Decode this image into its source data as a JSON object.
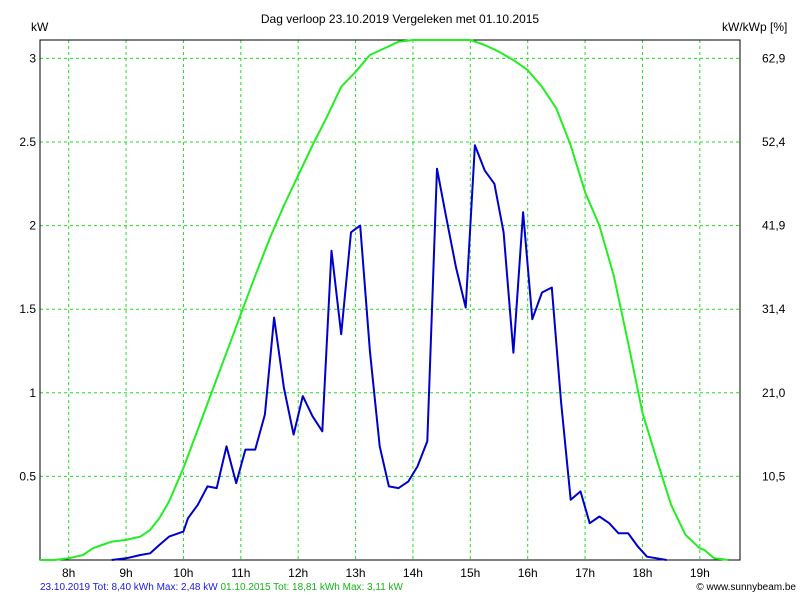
{
  "chart_data": {
    "type": "line",
    "title": "Dag  verloop 23.10.2019   Vergeleken met 01.10.2015",
    "ylabel_left": "kW",
    "ylabel_right": "kW/kWp [%]",
    "xlim": [
      7.5,
      19.7
    ],
    "ylim": [
      0,
      3.11
    ],
    "x_tick_values": [
      8,
      9,
      10,
      11,
      12,
      13,
      14,
      15,
      16,
      17,
      18,
      19
    ],
    "x_tick_labels": [
      "8h",
      "9h",
      "10h",
      "11h",
      "12h",
      "13h",
      "14h",
      "15h",
      "16h",
      "17h",
      "18h",
      "19h"
    ],
    "y_tick_values": [
      0.5,
      1,
      1.5,
      2,
      2.5,
      3
    ],
    "y_tick_labels": [
      "0.5",
      "1",
      "1.5",
      "2",
      "2.5",
      "3"
    ],
    "y2_tick_labels": [
      "10,5",
      "21,0",
      "31,4",
      "41,9",
      "52,4",
      "62,9"
    ],
    "grid": true,
    "series": [
      {
        "name": "23.10.2019",
        "color": "#0000cc",
        "x": [
          8.75,
          9.0,
          9.25,
          9.42,
          9.58,
          9.75,
          10.0,
          10.08,
          10.25,
          10.42,
          10.58,
          10.75,
          10.92,
          11.08,
          11.25,
          11.42,
          11.58,
          11.75,
          11.92,
          12.08,
          12.25,
          12.42,
          12.58,
          12.75,
          12.92,
          13.08,
          13.25,
          13.42,
          13.58,
          13.75,
          13.92,
          14.08,
          14.25,
          14.42,
          14.58,
          14.75,
          14.92,
          15.08,
          15.25,
          15.42,
          15.58,
          15.75,
          15.92,
          16.08,
          16.25,
          16.42,
          16.58,
          16.75,
          16.92,
          17.08,
          17.25,
          17.42,
          17.58,
          17.75,
          17.92,
          18.08,
          18.25,
          18.42
        ],
        "y": [
          0.0,
          0.01,
          0.03,
          0.04,
          0.09,
          0.14,
          0.17,
          0.25,
          0.33,
          0.44,
          0.43,
          0.68,
          0.46,
          0.66,
          0.66,
          0.87,
          1.45,
          1.03,
          0.75,
          0.98,
          0.86,
          0.77,
          1.85,
          1.35,
          1.96,
          2.0,
          1.25,
          0.68,
          0.44,
          0.43,
          0.47,
          0.56,
          0.71,
          2.34,
          2.05,
          1.75,
          1.51,
          2.48,
          2.33,
          2.25,
          1.96,
          1.24,
          2.08,
          1.44,
          1.6,
          1.63,
          0.95,
          0.36,
          0.41,
          0.22,
          0.26,
          0.22,
          0.16,
          0.16,
          0.08,
          0.02,
          0.01,
          0.0
        ]
      },
      {
        "name": "01.10.2015",
        "color": "#22ee22",
        "x": [
          7.5,
          7.75,
          8.0,
          8.25,
          8.42,
          8.58,
          8.75,
          9.0,
          9.25,
          9.42,
          9.58,
          9.75,
          10.0,
          10.25,
          10.5,
          10.75,
          11.0,
          11.25,
          11.5,
          11.75,
          12.0,
          12.25,
          12.5,
          12.75,
          13.0,
          13.25,
          13.5,
          13.75,
          14.0,
          14.25,
          14.42,
          14.58,
          14.75,
          15.0,
          15.25,
          15.5,
          15.75,
          16.0,
          16.25,
          16.5,
          16.75,
          17.0,
          17.25,
          17.5,
          17.75,
          18.0,
          18.25,
          18.5,
          18.75,
          19.0,
          19.08,
          19.25,
          19.5
        ],
        "y": [
          0.0,
          0.0,
          0.01,
          0.03,
          0.07,
          0.09,
          0.11,
          0.12,
          0.14,
          0.18,
          0.25,
          0.35,
          0.55,
          0.78,
          1.01,
          1.24,
          1.47,
          1.7,
          1.92,
          2.12,
          2.3,
          2.48,
          2.65,
          2.83,
          2.92,
          3.02,
          3.06,
          3.1,
          3.11,
          3.11,
          3.11,
          3.11,
          3.11,
          3.11,
          3.08,
          3.04,
          2.99,
          2.93,
          2.83,
          2.7,
          2.48,
          2.2,
          2.0,
          1.7,
          1.3,
          0.88,
          0.6,
          0.33,
          0.15,
          0.07,
          0.06,
          0.01,
          0.0
        ]
      }
    ]
  },
  "footer": {
    "series1_summary": "23.10.2019 Tot: 8,40 kWh Max: 2,48 kW",
    "series2_summary": "01.10.2015 Tot: 18,81 kWh Max: 3,11 kW",
    "credit": "© www.sunnybeam.be"
  }
}
